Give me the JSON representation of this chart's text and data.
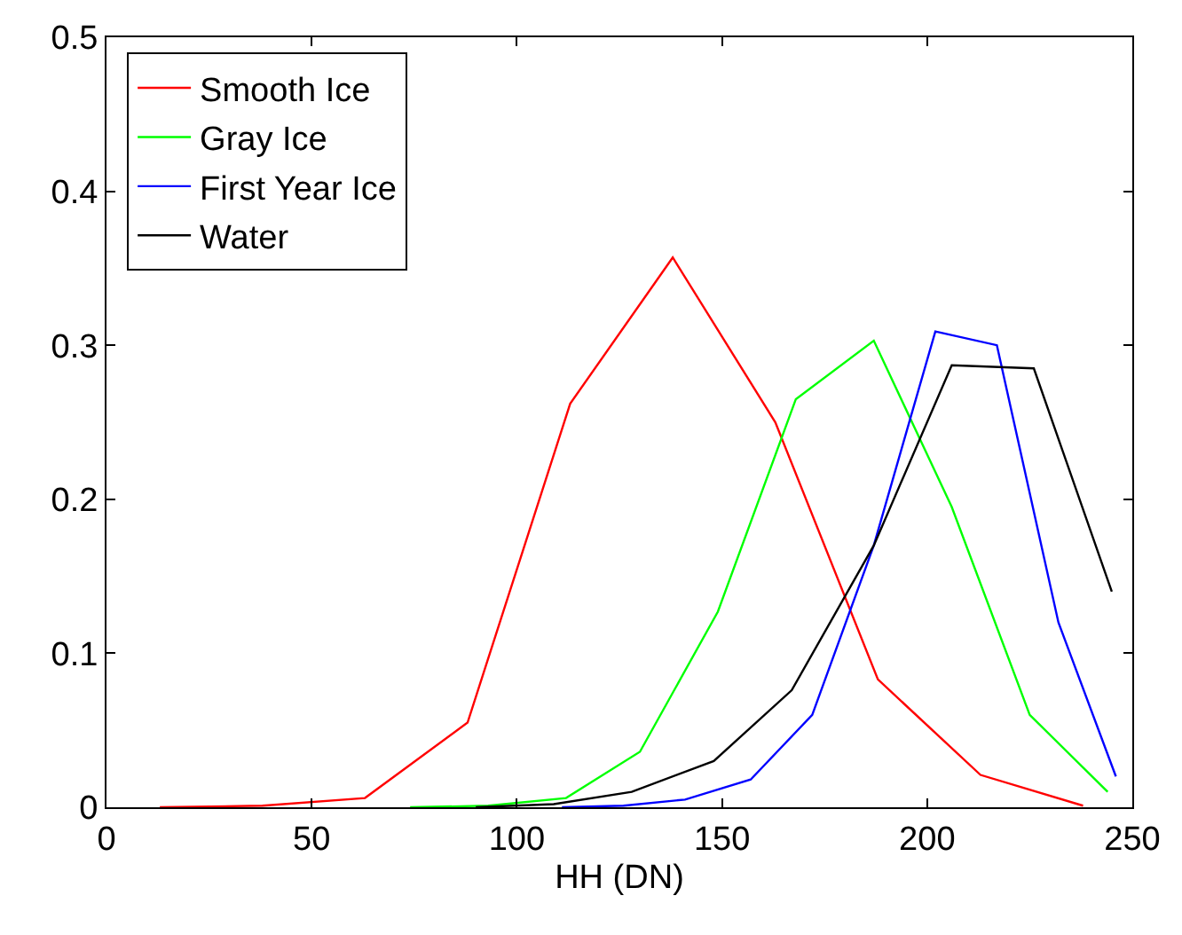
{
  "chart_data": {
    "type": "line",
    "xlabel": "HH (DN)",
    "xlim": [
      0,
      250
    ],
    "xticks": [
      0,
      50,
      100,
      150,
      200,
      250
    ],
    "ylim": [
      0,
      0.5
    ],
    "yticks": [
      0,
      0.1,
      0.2,
      0.3,
      0.4,
      0.5
    ],
    "legend": "top left",
    "marker": "none",
    "line_style": "solid",
    "series": [
      {
        "name": "Smooth Ice",
        "color": "#ff0000",
        "x": [
          13,
          38,
          63,
          88,
          113,
          138,
          163,
          188,
          213,
          238
        ],
        "values": [
          0,
          0.001,
          0.006,
          0.055,
          0.262,
          0.357,
          0.25,
          0.083,
          0.021,
          0.001
        ]
      },
      {
        "name": "Gray Ice",
        "color": "#00ff00",
        "x": [
          74,
          93,
          112,
          130,
          149,
          168,
          187,
          206,
          225,
          244
        ],
        "values": [
          0,
          0.001,
          0.006,
          0.036,
          0.127,
          0.265,
          0.303,
          0.195,
          0.06,
          0.01
        ]
      },
      {
        "name": "First Year Ice",
        "color": "#0000ff",
        "x": [
          111,
          126,
          141,
          157,
          172,
          187,
          202,
          217,
          232,
          246
        ],
        "values": [
          0,
          0.001,
          0.005,
          0.018,
          0.06,
          0.17,
          0.309,
          0.3,
          0.12,
          0.02
        ]
      },
      {
        "name": "Water",
        "color": "#000000",
        "x": [
          90,
          109,
          128,
          148,
          167,
          187,
          206,
          226,
          245
        ],
        "values": [
          0,
          0.002,
          0.01,
          0.03,
          0.076,
          0.17,
          0.287,
          0.285,
          0.14
        ]
      }
    ]
  }
}
